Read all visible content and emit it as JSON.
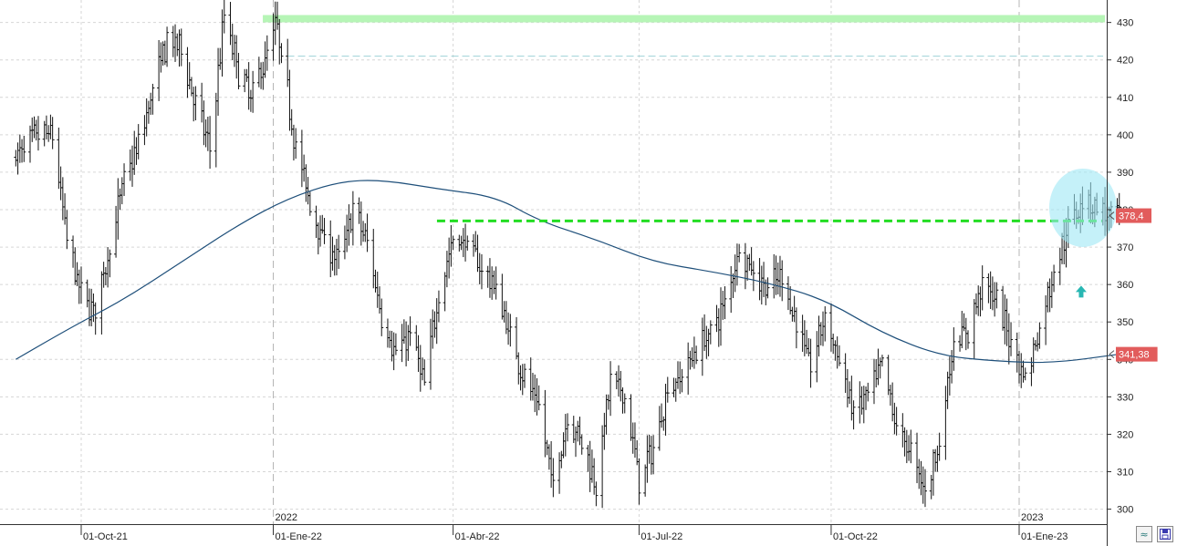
{
  "chart_data": {
    "type": "ohlc",
    "ylim": [
      296,
      436
    ],
    "y_ticks": [
      300,
      310,
      320,
      330,
      340,
      350,
      360,
      370,
      380,
      390,
      400,
      410,
      420,
      430
    ],
    "x_labels": [
      {
        "date": "2021-10-01",
        "label": "01-Oct-21"
      },
      {
        "date": "2022-01-03",
        "label": "01-Ene-22"
      },
      {
        "date": "2022-04-01",
        "label": "01-Abr-22"
      },
      {
        "date": "2022-07-01",
        "label": "01-Jul-22"
      },
      {
        "date": "2022-10-03",
        "label": "01-Oct-22"
      },
      {
        "date": "2023-01-03",
        "label": "01-Ene-23"
      }
    ],
    "year_labels": [
      {
        "date": "2022-01-03",
        "label": "2022"
      },
      {
        "date": "2023-01-03",
        "label": "2023"
      }
    ],
    "price_path": [
      [
        "2021-08-30",
        394
      ],
      [
        "2021-09-10",
        400
      ],
      [
        "2021-09-17",
        400
      ],
      [
        "2021-09-24",
        372
      ],
      [
        "2021-10-01",
        357
      ],
      [
        "2021-10-08",
        353
      ],
      [
        "2021-10-15",
        370
      ],
      [
        "2021-10-22",
        388
      ],
      [
        "2021-10-29",
        397
      ],
      [
        "2021-11-05",
        412
      ],
      [
        "2021-11-12",
        425
      ],
      [
        "2021-11-19",
        423
      ],
      [
        "2021-11-26",
        408
      ],
      [
        "2021-12-03",
        396
      ],
      [
        "2021-12-10",
        432
      ],
      [
        "2021-12-17",
        417
      ],
      [
        "2021-12-23",
        410
      ],
      [
        "2021-12-30",
        420
      ],
      [
        "2022-01-04",
        430
      ],
      [
        "2022-01-10",
        411
      ],
      [
        "2022-01-14",
        397
      ],
      [
        "2022-01-21",
        381
      ],
      [
        "2022-01-28",
        372
      ],
      [
        "2022-02-04",
        366
      ],
      [
        "2022-02-11",
        380
      ],
      [
        "2022-02-18",
        371
      ],
      [
        "2022-02-25",
        352
      ],
      [
        "2022-03-04",
        341
      ],
      [
        "2022-03-11",
        347
      ],
      [
        "2022-03-18",
        333
      ],
      [
        "2022-03-25",
        358
      ],
      [
        "2022-04-01",
        372
      ],
      [
        "2022-04-08",
        371
      ],
      [
        "2022-04-14",
        365
      ],
      [
        "2022-04-22",
        359
      ],
      [
        "2022-04-29",
        346
      ],
      [
        "2022-05-06",
        335
      ],
      [
        "2022-05-13",
        327
      ],
      [
        "2022-05-20",
        306
      ],
      [
        "2022-05-27",
        325
      ],
      [
        "2022-06-03",
        318
      ],
      [
        "2022-06-10",
        307
      ],
      [
        "2022-06-17",
        334
      ],
      [
        "2022-06-24",
        330
      ],
      [
        "2022-07-01",
        308
      ],
      [
        "2022-07-08",
        316
      ],
      [
        "2022-07-15",
        332
      ],
      [
        "2022-07-22",
        336
      ],
      [
        "2022-07-29",
        343
      ],
      [
        "2022-08-05",
        347
      ],
      [
        "2022-08-12",
        355
      ],
      [
        "2022-08-19",
        370
      ],
      [
        "2022-08-26",
        363
      ],
      [
        "2022-09-02",
        359
      ],
      [
        "2022-09-09",
        362
      ],
      [
        "2022-09-16",
        350
      ],
      [
        "2022-09-23",
        338
      ],
      [
        "2022-09-30",
        352
      ],
      [
        "2022-10-07",
        339
      ],
      [
        "2022-10-14",
        326
      ],
      [
        "2022-10-21",
        330
      ],
      [
        "2022-10-28",
        338
      ],
      [
        "2022-11-04",
        322
      ],
      [
        "2022-11-11",
        315
      ],
      [
        "2022-11-18",
        305
      ],
      [
        "2022-11-25",
        318
      ],
      [
        "2022-12-02",
        345
      ],
      [
        "2022-12-09",
        347
      ],
      [
        "2022-12-16",
        361
      ],
      [
        "2022-12-23",
        355
      ],
      [
        "2022-12-30",
        345
      ],
      [
        "2023-01-06",
        335
      ],
      [
        "2023-01-13",
        348
      ],
      [
        "2023-01-20",
        364
      ],
      [
        "2023-01-27",
        375
      ],
      [
        "2023-02-03",
        383
      ],
      [
        "2023-02-10",
        381
      ],
      [
        "2023-02-17",
        377
      ],
      [
        "2023-02-21",
        379
      ]
    ],
    "moving_average": [
      [
        "2021-08-30",
        340
      ],
      [
        "2021-09-24",
        348
      ],
      [
        "2021-10-22",
        356
      ],
      [
        "2021-11-19",
        366
      ],
      [
        "2021-12-17",
        376
      ],
      [
        "2022-01-10",
        383
      ],
      [
        "2022-02-04",
        387.5
      ],
      [
        "2022-02-25",
        388
      ],
      [
        "2022-03-25",
        385.5
      ],
      [
        "2022-04-22",
        383.5
      ],
      [
        "2022-05-13",
        377
      ],
      [
        "2022-06-10",
        372
      ],
      [
        "2022-07-08",
        366
      ],
      [
        "2022-08-05",
        363.5
      ],
      [
        "2022-09-02",
        360.5
      ],
      [
        "2022-09-30",
        356
      ],
      [
        "2022-10-28",
        347
      ],
      [
        "2022-11-25",
        341
      ],
      [
        "2022-12-23",
        339.5
      ],
      [
        "2023-01-20",
        339
      ],
      [
        "2023-02-21",
        341.4
      ]
    ],
    "levels": {
      "resistance_band": 431,
      "dashed_line": 421,
      "support_line": 377,
      "support_line_start": "2022-03-25"
    },
    "highlight_circle": {
      "date": "2023-02-01",
      "value": 380.5
    },
    "arrow_marker": {
      "date": "2023-02-01",
      "value": 358
    },
    "price_tags": [
      {
        "value": 378.4,
        "label": "378,4"
      },
      {
        "value": 341.38,
        "label": "341,38"
      }
    ],
    "colors": {
      "bars": "#111111",
      "moving_average": "#1e4f7a",
      "support": "#22dd22",
      "band": "#b6f5b6",
      "circle": "#9ee7f5",
      "arrow": "#28b7b3",
      "tag": "#e25c5c"
    }
  }
}
